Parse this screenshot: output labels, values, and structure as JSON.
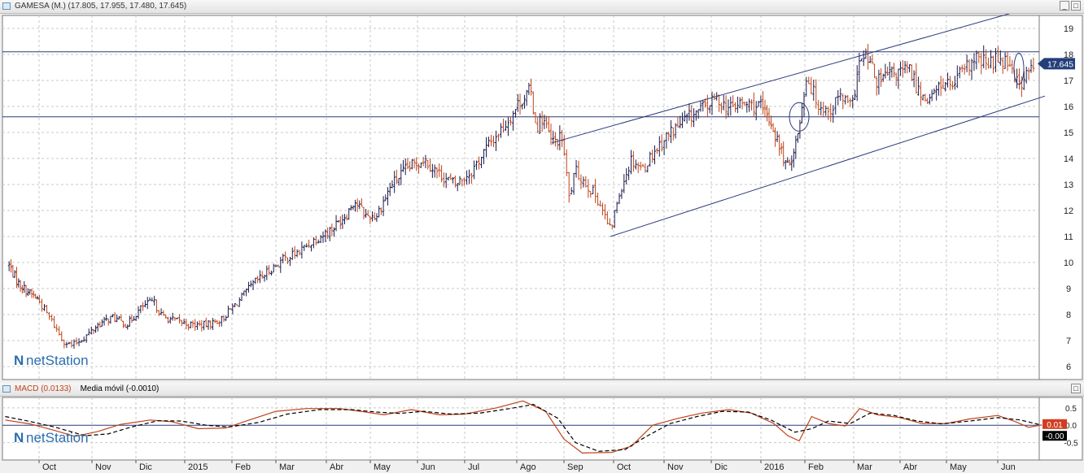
{
  "price_panel": {
    "title": "GAMESA (M.) (17.805, 17.955, 17.480, 17.645)",
    "last_price_label": "17.645",
    "watermark": "netStation"
  },
  "macd_panel": {
    "title_macd": "MACD (0.0133)",
    "title_signal": "Media móvil (-0.0010)",
    "macd_label": "0.01",
    "signal_label": "-0.00",
    "watermark": "netStation"
  },
  "colors": {
    "up_bar": "#1a1a4d",
    "down_bar": "#c0431a",
    "macd_line": "#c0431a",
    "signal_line": "#000000",
    "trend_line": "#2a3a7a",
    "price_badge": "#243f7a",
    "macd_badge": "#d23d1f"
  },
  "chart_data": [
    {
      "type": "ohlc",
      "ylim": [
        5.5,
        19.5
      ],
      "yticks": [
        6,
        7,
        8,
        9,
        10,
        11,
        12,
        13,
        14,
        15,
        16,
        17,
        18,
        19
      ],
      "x_months": [
        {
          "label": "Oct",
          "date": "2014-10-01"
        },
        {
          "label": "Nov",
          "date": "2014-11-01"
        },
        {
          "label": "Dic",
          "date": "2014-12-01"
        },
        {
          "label": "2015",
          "date": "2015-01-01"
        },
        {
          "label": "Feb",
          "date": "2015-02-01"
        },
        {
          "label": "Mar",
          "date": "2015-03-01"
        },
        {
          "label": "Abr",
          "date": "2015-04-01"
        },
        {
          "label": "May",
          "date": "2015-05-01"
        },
        {
          "label": "Jun",
          "date": "2015-06-01"
        },
        {
          "label": "Jul",
          "date": "2015-07-01"
        },
        {
          "label": "Ago",
          "date": "2015-08-01"
        },
        {
          "label": "Sep",
          "date": "2015-09-01"
        },
        {
          "label": "Oct",
          "date": "2015-10-01"
        },
        {
          "label": "Nov",
          "date": "2015-11-01"
        },
        {
          "label": "Dic",
          "date": "2015-12-01"
        },
        {
          "label": "2016",
          "date": "2016-01-01"
        },
        {
          "label": "Feb",
          "date": "2016-02-01"
        },
        {
          "label": "Mar",
          "date": "2016-03-01"
        },
        {
          "label": "Abr",
          "date": "2016-04-01"
        },
        {
          "label": "May",
          "date": "2016-05-01"
        },
        {
          "label": "Jun",
          "date": "2016-06-01"
        }
      ],
      "price_path": [
        [
          "2014-09-08",
          9.9
        ],
        [
          "2014-09-15",
          9.2
        ],
        [
          "2014-09-22",
          8.9
        ],
        [
          "2014-09-30",
          8.6
        ],
        [
          "2014-10-08",
          7.8
        ],
        [
          "2014-10-15",
          7.0
        ],
        [
          "2014-10-20",
          6.8
        ],
        [
          "2014-10-27",
          7.1
        ],
        [
          "2014-11-05",
          7.6
        ],
        [
          "2014-11-15",
          7.9
        ],
        [
          "2014-11-25",
          7.6
        ],
        [
          "2014-12-05",
          8.3
        ],
        [
          "2014-12-12",
          8.5
        ],
        [
          "2014-12-18",
          7.9
        ],
        [
          "2015-01-05",
          7.6
        ],
        [
          "2015-01-15",
          7.6
        ],
        [
          "2015-01-25",
          7.8
        ],
        [
          "2015-02-05",
          8.5
        ],
        [
          "2015-02-15",
          9.2
        ],
        [
          "2015-02-25",
          9.7
        ],
        [
          "2015-03-05",
          10.1
        ],
        [
          "2015-03-15",
          10.4
        ],
        [
          "2015-03-25",
          10.9
        ],
        [
          "2015-04-05",
          11.3
        ],
        [
          "2015-04-15",
          11.9
        ],
        [
          "2015-04-20",
          12.4
        ],
        [
          "2015-04-28",
          11.8
        ],
        [
          "2015-05-05",
          11.8
        ],
        [
          "2015-05-15",
          13.0
        ],
        [
          "2015-05-25",
          13.6
        ],
        [
          "2015-06-05",
          14.0
        ],
        [
          "2015-06-15",
          13.4
        ],
        [
          "2015-06-25",
          13.0
        ],
        [
          "2015-07-05",
          13.5
        ],
        [
          "2015-07-15",
          14.5
        ],
        [
          "2015-07-25",
          15.3
        ],
        [
          "2015-08-03",
          16.2
        ],
        [
          "2015-08-10",
          16.6
        ],
        [
          "2015-08-14",
          15.2
        ],
        [
          "2015-08-18",
          15.6
        ],
        [
          "2015-08-24",
          14.6
        ],
        [
          "2015-08-31",
          14.8
        ],
        [
          "2015-09-04",
          12.5
        ],
        [
          "2015-09-08",
          13.5
        ],
        [
          "2015-09-15",
          13.0
        ],
        [
          "2015-09-22",
          12.4
        ],
        [
          "2015-09-29",
          11.2
        ],
        [
          "2015-10-05",
          12.8
        ],
        [
          "2015-10-12",
          14.0
        ],
        [
          "2015-10-19",
          13.6
        ],
        [
          "2015-10-26",
          14.3
        ],
        [
          "2015-11-05",
          15.0
        ],
        [
          "2015-11-15",
          15.5
        ],
        [
          "2015-11-25",
          15.9
        ],
        [
          "2015-12-05",
          16.3
        ],
        [
          "2015-12-12",
          15.9
        ],
        [
          "2015-12-19",
          16.1
        ],
        [
          "2015-12-31",
          16.0
        ],
        [
          "2016-01-08",
          15.4
        ],
        [
          "2016-01-15",
          14.3
        ],
        [
          "2016-01-20",
          13.6
        ],
        [
          "2016-01-27",
          14.9
        ],
        [
          "2016-02-02",
          17.2
        ],
        [
          "2016-02-08",
          16.2
        ],
        [
          "2016-02-15",
          15.8
        ],
        [
          "2016-02-22",
          16.4
        ],
        [
          "2016-02-29",
          15.9
        ],
        [
          "2016-03-04",
          17.6
        ],
        [
          "2016-03-10",
          17.9
        ],
        [
          "2016-03-17",
          16.9
        ],
        [
          "2016-03-24",
          17.2
        ],
        [
          "2016-03-31",
          17.3
        ],
        [
          "2016-04-07",
          17.4
        ],
        [
          "2016-04-14",
          16.5
        ],
        [
          "2016-04-21",
          16.3
        ],
        [
          "2016-04-28",
          16.9
        ],
        [
          "2016-05-05",
          16.8
        ],
        [
          "2016-05-12",
          17.4
        ],
        [
          "2016-05-19",
          17.8
        ],
        [
          "2016-05-26",
          17.6
        ],
        [
          "2016-06-02",
          17.9
        ],
        [
          "2016-06-09",
          17.7
        ],
        [
          "2016-06-14",
          16.8
        ],
        [
          "2016-06-20",
          17.3
        ],
        [
          "2016-06-24",
          17.645
        ]
      ],
      "horizontal_lines": [
        18.1,
        15.6
      ],
      "trend_lines": [
        {
          "from": [
            "2015-08-24",
            14.6
          ],
          "to": [
            "2016-06-10",
            19.6
          ]
        },
        {
          "from": [
            "2015-09-29",
            11.0
          ],
          "to": [
            "2016-06-30",
            16.4
          ]
        }
      ],
      "ellipses": [
        {
          "date": "2016-01-28",
          "y": 15.6,
          "span_days": 10,
          "span_y": 1.1
        },
        {
          "date": "2016-06-14",
          "y": 17.45,
          "span_days": 4,
          "span_y": 1.2
        }
      ]
    },
    {
      "type": "line",
      "ylim": [
        -1.0,
        0.8
      ],
      "yticks": [
        0.5,
        0.0,
        -0.5
      ],
      "ytick_labels": [
        "0.5",
        "0.0",
        "-0.5"
      ],
      "series": [
        {
          "name": "MACD",
          "points": [
            [
              "2014-09-05",
              0.15
            ],
            [
              "2014-09-25",
              0.03
            ],
            [
              "2014-10-10",
              -0.15
            ],
            [
              "2014-10-22",
              -0.32
            ],
            [
              "2014-11-05",
              -0.18
            ],
            [
              "2014-11-20",
              0.02
            ],
            [
              "2014-12-10",
              0.15
            ],
            [
              "2014-12-24",
              0.1
            ],
            [
              "2015-01-10",
              -0.1
            ],
            [
              "2015-01-28",
              -0.08
            ],
            [
              "2015-02-12",
              0.15
            ],
            [
              "2015-03-01",
              0.4
            ],
            [
              "2015-03-20",
              0.48
            ],
            [
              "2015-04-10",
              0.48
            ],
            [
              "2015-04-28",
              0.38
            ],
            [
              "2015-05-10",
              0.3
            ],
            [
              "2015-05-28",
              0.45
            ],
            [
              "2015-06-15",
              0.3
            ],
            [
              "2015-07-01",
              0.32
            ],
            [
              "2015-07-20",
              0.5
            ],
            [
              "2015-08-05",
              0.7
            ],
            [
              "2015-08-20",
              0.4
            ],
            [
              "2015-09-01",
              -0.4
            ],
            [
              "2015-09-12",
              -0.8
            ],
            [
              "2015-09-30",
              -0.78
            ],
            [
              "2015-10-12",
              -0.6
            ],
            [
              "2015-10-25",
              0.0
            ],
            [
              "2015-11-10",
              0.2
            ],
            [
              "2015-11-25",
              0.35
            ],
            [
              "2015-12-12",
              0.45
            ],
            [
              "2015-12-26",
              0.35
            ],
            [
              "2016-01-10",
              0.05
            ],
            [
              "2016-01-20",
              -0.3
            ],
            [
              "2016-01-28",
              -0.45
            ],
            [
              "2016-02-05",
              0.25
            ],
            [
              "2016-02-15",
              0.05
            ],
            [
              "2016-02-25",
              -0.02
            ],
            [
              "2016-03-05",
              0.48
            ],
            [
              "2016-03-17",
              0.3
            ],
            [
              "2016-04-01",
              0.22
            ],
            [
              "2016-04-15",
              0.05
            ],
            [
              "2016-05-01",
              0.05
            ],
            [
              "2016-05-15",
              0.18
            ],
            [
              "2016-06-01",
              0.28
            ],
            [
              "2016-06-12",
              0.1
            ],
            [
              "2016-06-20",
              -0.06
            ],
            [
              "2016-06-28",
              0.01
            ]
          ]
        },
        {
          "name": "Media móvil",
          "points": [
            [
              "2014-09-05",
              0.25
            ],
            [
              "2014-09-25",
              0.1
            ],
            [
              "2014-10-10",
              -0.05
            ],
            [
              "2014-10-28",
              -0.3
            ],
            [
              "2014-11-12",
              -0.25
            ],
            [
              "2014-11-28",
              -0.05
            ],
            [
              "2014-12-15",
              0.13
            ],
            [
              "2014-12-30",
              0.12
            ],
            [
              "2015-01-15",
              0.0
            ],
            [
              "2015-01-30",
              -0.05
            ],
            [
              "2015-02-18",
              0.08
            ],
            [
              "2015-03-08",
              0.32
            ],
            [
              "2015-03-28",
              0.45
            ],
            [
              "2015-04-18",
              0.45
            ],
            [
              "2015-05-05",
              0.38
            ],
            [
              "2015-05-20",
              0.34
            ],
            [
              "2015-06-05",
              0.4
            ],
            [
              "2015-06-22",
              0.32
            ],
            [
              "2015-07-10",
              0.35
            ],
            [
              "2015-07-28",
              0.48
            ],
            [
              "2015-08-12",
              0.6
            ],
            [
              "2015-08-28",
              0.2
            ],
            [
              "2015-09-08",
              -0.5
            ],
            [
              "2015-09-22",
              -0.75
            ],
            [
              "2015-10-08",
              -0.7
            ],
            [
              "2015-10-20",
              -0.35
            ],
            [
              "2015-11-05",
              0.05
            ],
            [
              "2015-11-22",
              0.25
            ],
            [
              "2015-12-08",
              0.4
            ],
            [
              "2015-12-24",
              0.38
            ],
            [
              "2016-01-08",
              0.15
            ],
            [
              "2016-01-25",
              -0.2
            ],
            [
              "2016-02-05",
              -0.1
            ],
            [
              "2016-02-15",
              0.12
            ],
            [
              "2016-02-28",
              0.05
            ],
            [
              "2016-03-12",
              0.35
            ],
            [
              "2016-03-28",
              0.28
            ],
            [
              "2016-04-12",
              0.12
            ],
            [
              "2016-04-28",
              0.04
            ],
            [
              "2016-05-15",
              0.12
            ],
            [
              "2016-06-01",
              0.22
            ],
            [
              "2016-06-15",
              0.15
            ],
            [
              "2016-06-28",
              0.0
            ]
          ]
        }
      ]
    }
  ]
}
